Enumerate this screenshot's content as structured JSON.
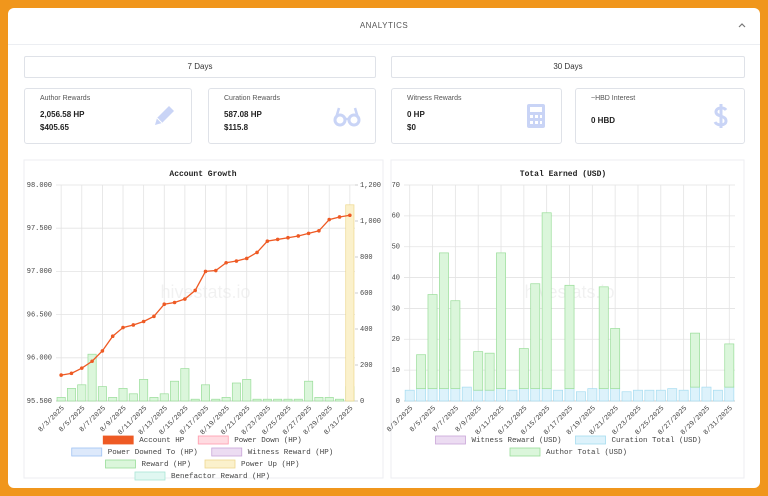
{
  "header": {
    "title": "ANALYTICS"
  },
  "ranges": [
    "7 Days",
    "30 Days"
  ],
  "cards": [
    {
      "label": "Author Rewards",
      "lines": [
        "2,056.58 HP",
        "$405.65"
      ]
    },
    {
      "label": "Curation Rewards",
      "lines": [
        "587.08 HP",
        "$115.8"
      ]
    },
    {
      "label": "Witness Rewards",
      "lines": [
        "0 HP",
        "$0"
      ]
    },
    {
      "label": "~HBD Interest",
      "lines": [
        "0 HBD"
      ]
    }
  ],
  "chart_data": [
    {
      "type": "bar_line",
      "title": "Account Growth",
      "watermark": "hivestats.io",
      "grid": true,
      "legend": "bottom",
      "categories": [
        "8/3/2025",
        null,
        "8/5/2025",
        null,
        "8/7/2025",
        null,
        "8/9/2025",
        null,
        "8/11/2025",
        null,
        "8/13/2025",
        null,
        "8/15/2025",
        null,
        "8/17/2025",
        null,
        "8/19/2025",
        null,
        "8/21/2025",
        null,
        "8/23/2025",
        null,
        "8/25/2025",
        null,
        "8/27/2025",
        null,
        "8/29/2025",
        null,
        "8/31/2025"
      ],
      "ylim": [
        95.5,
        98
      ],
      "yticks": [
        {
          "value": 95.5,
          "label": "95.500"
        },
        {
          "value": 96,
          "label": "96.000"
        },
        {
          "value": 96.5,
          "label": "96.500"
        },
        {
          "value": 97,
          "label": "97.000"
        },
        {
          "value": 97.5,
          "label": "97.500"
        },
        {
          "value": 98,
          "label": "98.000"
        }
      ],
      "y2lim": [
        0,
        1200
      ],
      "y2ticks": [
        0,
        200,
        400,
        600,
        800,
        {
          "value": 1000,
          "label": "1,000"
        },
        {
          "value": 1200,
          "label": "1,200"
        }
      ],
      "series": [
        {
          "name": "Account HP",
          "type": "line",
          "axis": "y",
          "color": "#ee5a24",
          "border_color": "#ee5a24",
          "values": [
            95.8,
            95.82,
            95.88,
            95.96,
            96.08,
            96.25,
            96.35,
            96.38,
            96.42,
            96.48,
            96.62,
            96.64,
            96.68,
            96.78,
            97.0,
            97.01,
            97.1,
            97.12,
            97.15,
            97.22,
            97.35,
            97.37,
            97.39,
            97.41,
            97.44,
            97.47,
            97.6,
            97.63,
            97.65
          ]
        },
        {
          "name": "Power Down (HP)",
          "type": "bar",
          "axis": "y2",
          "color": "#ffdbe1",
          "border_color": "#ff9aac",
          "values": [
            0,
            0,
            0,
            0,
            0,
            0,
            0,
            0,
            0,
            0,
            0,
            0,
            0,
            0,
            0,
            0,
            0,
            0,
            0,
            0,
            0,
            0,
            0,
            0,
            0,
            0,
            0,
            0,
            0
          ]
        },
        {
          "name": "Power Downed To (HP)",
          "type": "bar",
          "axis": "y2",
          "color": "#dde9fb",
          "border_color": "#9fc2f3",
          "values": [
            0,
            0,
            0,
            0,
            0,
            0,
            0,
            0,
            0,
            0,
            0,
            0,
            0,
            0,
            0,
            0,
            0,
            0,
            0,
            0,
            0,
            0,
            0,
            0,
            0,
            0,
            0,
            0,
            0
          ]
        },
        {
          "name": "Witness Reward (HP)",
          "type": "bar",
          "axis": "y2",
          "color": "#ecdcf2",
          "border_color": "#c9a6d8",
          "values": [
            0,
            0,
            0,
            0,
            0,
            0,
            0,
            0,
            0,
            0,
            0,
            0,
            0,
            0,
            0,
            0,
            0,
            0,
            0,
            0,
            0,
            0,
            0,
            0,
            0,
            0,
            0,
            0,
            0
          ]
        },
        {
          "name": "Reward (HP)",
          "type": "bar",
          "axis": "y2",
          "color": "#dbf6db",
          "border_color": "#99dd99",
          "values": [
            20,
            70,
            90,
            260,
            80,
            20,
            70,
            40,
            120,
            20,
            40,
            110,
            180,
            10,
            90,
            10,
            20,
            100,
            120,
            10,
            10,
            10,
            10,
            10,
            110,
            20,
            20,
            10,
            80
          ]
        },
        {
          "name": "Power Up (HP)",
          "type": "bar",
          "axis": "y2",
          "color": "#fbf1cc",
          "border_color": "#eed88e",
          "values": [
            0,
            0,
            0,
            0,
            0,
            0,
            0,
            0,
            0,
            0,
            0,
            0,
            0,
            0,
            0,
            0,
            0,
            0,
            0,
            0,
            0,
            0,
            0,
            0,
            0,
            0,
            0,
            0,
            1090
          ]
        },
        {
          "name": "Benefactor Reward (HP)",
          "type": "bar",
          "axis": "y2",
          "color": "#e0f7f1",
          "border_color": "#a9e5d5",
          "values": [
            0,
            0,
            0,
            0,
            0,
            0,
            0,
            0,
            0,
            0,
            0,
            0,
            0,
            0,
            0,
            0,
            0,
            0,
            0,
            0,
            0,
            0,
            0,
            0,
            0,
            0,
            0,
            0,
            0
          ]
        }
      ]
    },
    {
      "type": "stacked_bar",
      "title": "Total Earned (USD)",
      "watermark": "hivestats.io",
      "grid": true,
      "legend": "bottom",
      "categories": [
        "8/3/2025",
        null,
        "8/5/2025",
        null,
        "8/7/2025",
        null,
        "8/9/2025",
        null,
        "8/11/2025",
        null,
        "8/13/2025",
        null,
        "8/15/2025",
        null,
        "8/17/2025",
        null,
        "8/19/2025",
        null,
        "8/21/2025",
        null,
        "8/23/2025",
        null,
        "8/25/2025",
        null,
        "8/27/2025",
        null,
        "8/29/2025",
        null,
        "8/31/2025"
      ],
      "ylim": [
        0,
        70
      ],
      "yticks": [
        0,
        10,
        20,
        30,
        40,
        50,
        60,
        70
      ],
      "series": [
        {
          "name": "Witness Reward (USD)",
          "color": "#ecdcf2",
          "border_color": "#c9a6d8",
          "values": [
            0,
            0,
            0,
            0,
            0,
            0,
            0,
            0,
            0,
            0,
            0,
            0,
            0,
            0,
            0,
            0,
            0,
            0,
            0,
            0,
            0,
            0,
            0,
            0,
            0,
            0,
            0,
            0,
            0
          ]
        },
        {
          "name": "Curation Total (USD)",
          "color": "#ddf2fb",
          "border_color": "#a6dcf0",
          "values": [
            3.5,
            4,
            4,
            4,
            4,
            4.5,
            3.5,
            3.5,
            4,
            3.5,
            4,
            4,
            4,
            3.5,
            4,
            3,
            4,
            4,
            4,
            3,
            3.5,
            3.5,
            3.5,
            4,
            3.5,
            4.5,
            4.5,
            3.5,
            4.5
          ]
        },
        {
          "name": "Author Total (USD)",
          "color": "#dbf6db",
          "border_color": "#99dd99",
          "values": [
            0,
            11,
            30.5,
            44,
            28.5,
            0,
            12.5,
            12,
            44,
            0,
            13,
            34,
            57,
            0,
            33.5,
            0,
            0,
            33,
            19.5,
            0,
            0,
            0,
            0,
            0,
            0,
            17.5,
            0,
            0,
            14
          ]
        }
      ]
    }
  ]
}
